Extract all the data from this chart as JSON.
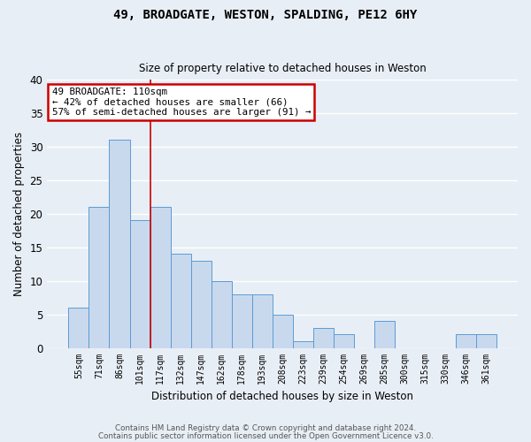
{
  "title1": "49, BROADGATE, WESTON, SPALDING, PE12 6HY",
  "title2": "Size of property relative to detached houses in Weston",
  "xlabel": "Distribution of detached houses by size in Weston",
  "ylabel": "Number of detached properties",
  "categories": [
    "55sqm",
    "71sqm",
    "86sqm",
    "101sqm",
    "117sqm",
    "132sqm",
    "147sqm",
    "162sqm",
    "178sqm",
    "193sqm",
    "208sqm",
    "223sqm",
    "239sqm",
    "254sqm",
    "269sqm",
    "285sqm",
    "300sqm",
    "315sqm",
    "330sqm",
    "346sqm",
    "361sqm"
  ],
  "values": [
    6,
    21,
    31,
    19,
    21,
    14,
    13,
    10,
    8,
    8,
    5,
    1,
    3,
    2,
    0,
    4,
    0,
    0,
    0,
    2,
    2
  ],
  "bar_color": "#c9d9ed",
  "bar_edge_color": "#5b9bd5",
  "annotation_line1": "49 BROADGATE: 110sqm",
  "annotation_line2": "← 42% of detached houses are smaller (66)",
  "annotation_line3": "57% of semi-detached houses are larger (91) →",
  "annotation_box_color": "#ffffff",
  "annotation_box_edge_color": "#cc0000",
  "vline_x": 3.5,
  "vline_color": "#cc0000",
  "background_color": "#e8eef6",
  "grid_color": "#ffffff",
  "footer1": "Contains HM Land Registry data © Crown copyright and database right 2024.",
  "footer2": "Contains public sector information licensed under the Open Government Licence v3.0.",
  "ylim": [
    0,
    40
  ],
  "yticks": [
    0,
    5,
    10,
    15,
    20,
    25,
    30,
    35,
    40
  ]
}
